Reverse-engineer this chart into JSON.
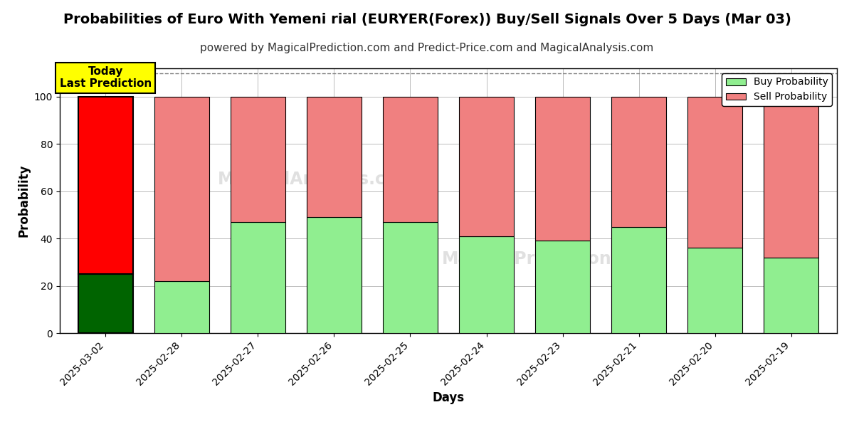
{
  "title": "Probabilities of Euro With Yemeni rial (EURYER(Forex)) Buy/Sell Signals Over 5 Days (Mar 03)",
  "subtitle": "powered by MagicalPrediction.com and Predict-Price.com and MagicalAnalysis.com",
  "xlabel": "Days",
  "ylabel": "Probability",
  "categories": [
    "2025-03-02",
    "2025-02-28",
    "2025-02-27",
    "2025-02-26",
    "2025-02-25",
    "2025-02-24",
    "2025-02-23",
    "2025-02-21",
    "2025-02-20",
    "2025-02-19"
  ],
  "buy_values": [
    25,
    22,
    47,
    49,
    47,
    41,
    39,
    45,
    36,
    32
  ],
  "sell_values": [
    75,
    78,
    53,
    51,
    53,
    59,
    61,
    55,
    64,
    68
  ],
  "today_buy_color": "#006400",
  "today_sell_color": "#FF0000",
  "buy_color": "#90EE90",
  "sell_color": "#F08080",
  "bar_edge_color": "#000000",
  "today_annotation": "Today\nLast Prediction",
  "today_annotation_bg": "#FFFF00",
  "ylim": [
    0,
    112
  ],
  "yticks": [
    0,
    20,
    40,
    60,
    80,
    100
  ],
  "dashed_line_y": 110,
  "legend_buy_label": "Buy Probability",
  "legend_sell_label": "Sell Probability",
  "background_color": "#ffffff",
  "grid_color": "#bbbbbb",
  "title_fontsize": 14,
  "subtitle_fontsize": 11,
  "axis_label_fontsize": 12,
  "tick_fontsize": 10,
  "bar_width": 0.72
}
